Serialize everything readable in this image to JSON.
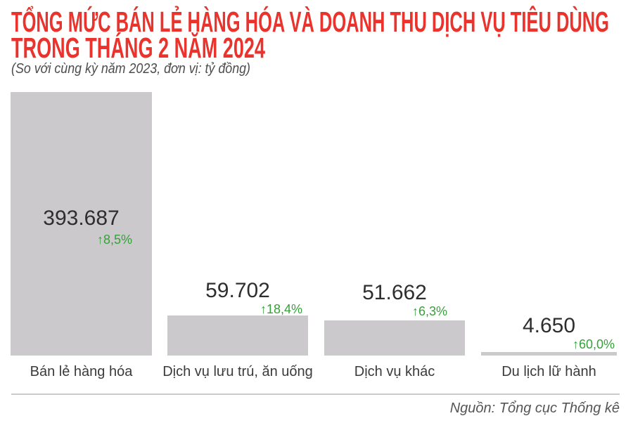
{
  "header": {
    "title_line1": "TỔNG MỨC BÁN LẺ HÀNG HÓA VÀ DOANH THU DỊCH VỤ TIÊU DÙNG",
    "title_line2": "TRONG THÁNG 2 NĂM 2024",
    "subtitle": "(So với cùng kỳ năm 2023, đơn vị: tỷ đồng)"
  },
  "icons": {
    "up_arrow": "↑"
  },
  "colors": {
    "title_red": "#e9332c",
    "positive_green": "#35a13a",
    "bar_gray": "#ccc9cc"
  },
  "chart_data": {
    "type": "bar",
    "title": "Tổng mức bán lẻ hàng hóa và doanh thu dịch vụ tiêu dùng trong tháng 2 năm 2024",
    "subtitle": "So với cùng kỳ năm 2023, đơn vị: tỷ đồng",
    "unit": "tỷ đồng",
    "categories": [
      "Bán lẻ hàng hóa",
      "Dịch vụ lưu trú, ăn uống",
      "Dịch vụ khác",
      "Du lịch lữ hành"
    ],
    "values": [
      393687,
      59702,
      51662,
      4650
    ],
    "changes_vs_2023_pct": [
      8.5,
      18.4,
      6.3,
      60.0
    ],
    "ylim": [
      0,
      400000
    ],
    "grid": false,
    "legend": false,
    "bars": [
      {
        "category": "Bán lẻ hàng hóa",
        "value": 393687,
        "value_label": "393.687",
        "change_label": "8,5%"
      },
      {
        "category": "Dịch vụ lưu trú, ăn uống",
        "value": 59702,
        "value_label": "59.702",
        "change_label": "18,4%"
      },
      {
        "category": "Dịch vụ khác",
        "value": 51662,
        "value_label": "51.662",
        "change_label": "6,3%"
      },
      {
        "category": "Du lịch lữ hành",
        "value": 4650,
        "value_label": "4.650",
        "change_label": "60,0%"
      }
    ]
  },
  "footer": {
    "source": "Nguồn: Tổng cục Thống kê"
  }
}
